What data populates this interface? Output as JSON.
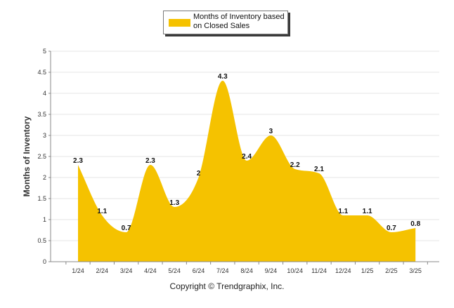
{
  "colors": {
    "fill": "#f5c200",
    "grid": "#e6e6e6",
    "axis": "#888888",
    "text": "#333333"
  },
  "legend": {
    "label": "Months of Inventory based on Closed Sales"
  },
  "footer": {
    "copyright": "Copyright © Trendgraphix, Inc."
  },
  "chart_data": {
    "type": "area",
    "ylabel": "Months of Inventory",
    "xlabel": "",
    "ylim": [
      0,
      5
    ],
    "yticks": [
      "0",
      "0.5",
      "1",
      "1.5",
      "2",
      "2.5",
      "3",
      "3.5",
      "4",
      "4.5",
      "5"
    ],
    "grid": true,
    "legend_position": "top-center",
    "categories": [
      "1/24",
      "2/24",
      "3/24",
      "4/24",
      "5/24",
      "6/24",
      "7/24",
      "8/24",
      "9/24",
      "10/24",
      "11/24",
      "12/24",
      "1/25",
      "2/25",
      "3/25"
    ],
    "series": [
      {
        "name": "Months of Inventory based on Closed Sales",
        "values": [
          2.3,
          1.1,
          0.7,
          2.3,
          1.3,
          2,
          4.3,
          2.4,
          3,
          2.2,
          2.1,
          1.1,
          1.1,
          0.7,
          0.8
        ],
        "labels": [
          "2.3",
          "1.1",
          "0.7",
          "2.3",
          "1.3",
          "2",
          "4.3",
          "2.4",
          "3",
          "2.2",
          "2.1",
          "1.1",
          "1.1",
          "0.7",
          "0.8"
        ]
      }
    ]
  }
}
